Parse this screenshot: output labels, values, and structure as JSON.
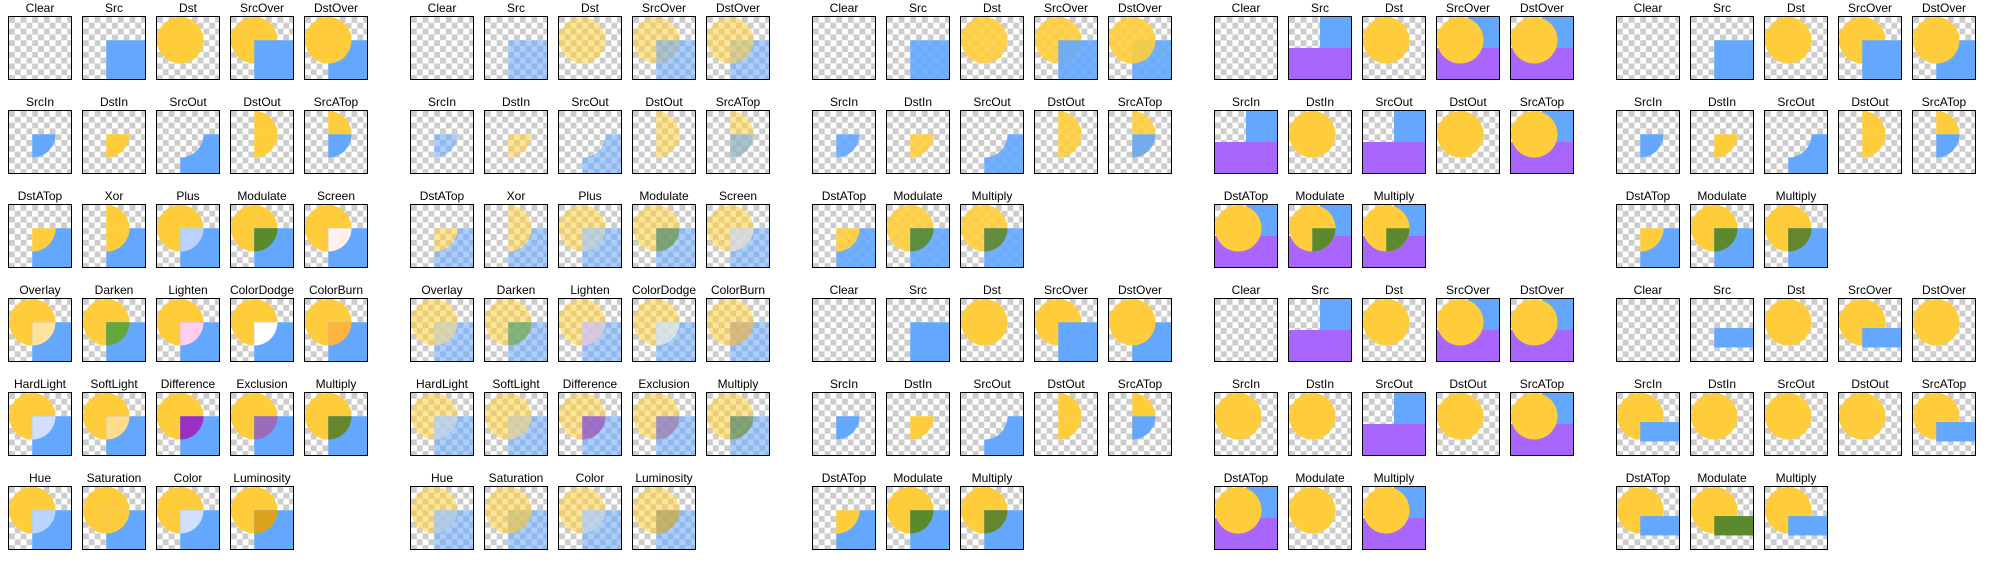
{
  "colors": {
    "dst": "#ffcd3c",
    "src": "#64a7ff",
    "src_alt": "#a966ff"
  },
  "rows": [
    "labels rendered per panel below"
  ],
  "panels": [
    {
      "cells": [
        {
          "label": "Clear",
          "mode": "clear"
        },
        {
          "label": "Src",
          "mode": "src"
        },
        {
          "label": "Dst",
          "mode": "dst"
        },
        {
          "label": "SrcOver",
          "mode": "srcover"
        },
        {
          "label": "DstOver",
          "mode": "dstover"
        },
        {
          "label": "SrcIn",
          "mode": "srcin"
        },
        {
          "label": "DstIn",
          "mode": "dstin"
        },
        {
          "label": "SrcOut",
          "mode": "srcout"
        },
        {
          "label": "DstOut",
          "mode": "dstout"
        },
        {
          "label": "SrcATop",
          "mode": "srcatop"
        },
        {
          "label": "DstATop",
          "mode": "dstatop"
        },
        {
          "label": "Xor",
          "mode": "xor"
        },
        {
          "label": "Plus",
          "mode": "plus"
        },
        {
          "label": "Modulate",
          "mode": "modulate"
        },
        {
          "label": "Screen",
          "mode": "screen"
        },
        {
          "label": "Overlay",
          "mode": "overlay"
        },
        {
          "label": "Darken",
          "mode": "darken"
        },
        {
          "label": "Lighten",
          "mode": "lighten"
        },
        {
          "label": "ColorDodge",
          "mode": "colordodge"
        },
        {
          "label": "ColorBurn",
          "mode": "colorburn"
        },
        {
          "label": "HardLight",
          "mode": "hardlight"
        },
        {
          "label": "SoftLight",
          "mode": "softlight"
        },
        {
          "label": "Difference",
          "mode": "difference"
        },
        {
          "label": "Exclusion",
          "mode": "exclusion"
        },
        {
          "label": "Multiply",
          "mode": "multiply"
        },
        {
          "label": "Hue",
          "mode": "hue"
        },
        {
          "label": "Saturation",
          "mode": "saturation"
        },
        {
          "label": "Color",
          "mode": "color"
        },
        {
          "label": "Luminosity",
          "mode": "luminosity"
        }
      ]
    },
    {
      "cells": [
        {
          "label": "Clear",
          "mode": "clear"
        },
        {
          "label": "Src",
          "mode": "src"
        },
        {
          "label": "Dst",
          "mode": "dst"
        },
        {
          "label": "SrcOver",
          "mode": "srcover"
        },
        {
          "label": "DstOver",
          "mode": "dstover"
        },
        {
          "label": "SrcIn",
          "mode": "srcin"
        },
        {
          "label": "DstIn",
          "mode": "dstin"
        },
        {
          "label": "SrcOut",
          "mode": "srcout"
        },
        {
          "label": "DstOut",
          "mode": "dstout"
        },
        {
          "label": "SrcATop",
          "mode": "srcatop"
        },
        {
          "label": "DstATop",
          "mode": "dstatop"
        },
        {
          "label": "Xor",
          "mode": "xor"
        },
        {
          "label": "Plus",
          "mode": "plus"
        },
        {
          "label": "Modulate",
          "mode": "modulate"
        },
        {
          "label": "Screen",
          "mode": "screen"
        },
        {
          "label": "Overlay",
          "mode": "overlay"
        },
        {
          "label": "Darken",
          "mode": "darken"
        },
        {
          "label": "Lighten",
          "mode": "lighten"
        },
        {
          "label": "ColorDodge",
          "mode": "colordodge"
        },
        {
          "label": "ColorBurn",
          "mode": "colorburn"
        },
        {
          "label": "HardLight",
          "mode": "hardlight"
        },
        {
          "label": "SoftLight",
          "mode": "softlight"
        },
        {
          "label": "Difference",
          "mode": "difference"
        },
        {
          "label": "Exclusion",
          "mode": "exclusion"
        },
        {
          "label": "Multiply",
          "mode": "multiply"
        },
        {
          "label": "Hue",
          "mode": "hue"
        },
        {
          "label": "Saturation",
          "mode": "saturation"
        },
        {
          "label": "Color",
          "mode": "color"
        },
        {
          "label": "Luminosity",
          "mode": "luminosity"
        }
      ]
    },
    {
      "blocks": [
        [
          {
            "label": "Clear"
          },
          {
            "label": "Src"
          },
          {
            "label": "Dst"
          },
          {
            "label": "SrcOver"
          },
          {
            "label": "DstOver"
          },
          {
            "label": "SrcIn"
          },
          {
            "label": "DstIn"
          },
          {
            "label": "SrcOut"
          },
          {
            "label": "DstOut"
          },
          {
            "label": "SrcATop"
          },
          {
            "label": "DstATop"
          },
          {
            "label": "Modulate"
          },
          {
            "label": "Multiply"
          }
        ],
        [
          {
            "label": "Clear"
          },
          {
            "label": "Src"
          },
          {
            "label": "Dst"
          },
          {
            "label": "SrcOver"
          },
          {
            "label": "DstOver"
          },
          {
            "label": "SrcIn"
          },
          {
            "label": "DstIn"
          },
          {
            "label": "SrcOut"
          },
          {
            "label": "DstOut"
          },
          {
            "label": "SrcATop"
          },
          {
            "label": "DstATop"
          },
          {
            "label": "Modulate"
          },
          {
            "label": "Multiply"
          }
        ]
      ]
    },
    {
      "blocks": [
        [
          {
            "label": "Clear"
          },
          {
            "label": "Src"
          },
          {
            "label": "Dst"
          },
          {
            "label": "SrcOver"
          },
          {
            "label": "DstOver"
          },
          {
            "label": "SrcIn"
          },
          {
            "label": "DstIn"
          },
          {
            "label": "SrcOut"
          },
          {
            "label": "DstOut"
          },
          {
            "label": "SrcATop"
          },
          {
            "label": "DstATop"
          },
          {
            "label": "Modulate"
          },
          {
            "label": "Multiply"
          }
        ],
        [
          {
            "label": "Clear"
          },
          {
            "label": "Src"
          },
          {
            "label": "Dst"
          },
          {
            "label": "SrcOver"
          },
          {
            "label": "DstOver"
          },
          {
            "label": "SrcIn"
          },
          {
            "label": "DstIn"
          },
          {
            "label": "SrcOut"
          },
          {
            "label": "DstOut"
          },
          {
            "label": "SrcATop"
          },
          {
            "label": "DstATop"
          },
          {
            "label": "Modulate"
          },
          {
            "label": "Multiply"
          }
        ]
      ]
    },
    {
      "blocks": [
        [
          {
            "label": "Clear"
          },
          {
            "label": "Src"
          },
          {
            "label": "Dst"
          },
          {
            "label": "SrcOver"
          },
          {
            "label": "DstOver"
          },
          {
            "label": "SrcIn"
          },
          {
            "label": "DstIn"
          },
          {
            "label": "SrcOut"
          },
          {
            "label": "DstOut"
          },
          {
            "label": "SrcATop"
          },
          {
            "label": "DstATop"
          },
          {
            "label": "Modulate"
          },
          {
            "label": "Multiply"
          }
        ],
        [
          {
            "label": "Clear"
          },
          {
            "label": "Src"
          },
          {
            "label": "Dst"
          },
          {
            "label": "SrcOver"
          },
          {
            "label": "DstOver"
          },
          {
            "label": "SrcIn"
          },
          {
            "label": "DstIn"
          },
          {
            "label": "SrcOut"
          },
          {
            "label": "DstOut"
          },
          {
            "label": "SrcATop"
          },
          {
            "label": "DstATop"
          },
          {
            "label": "Modulate"
          },
          {
            "label": "Multiply"
          }
        ]
      ]
    }
  ]
}
